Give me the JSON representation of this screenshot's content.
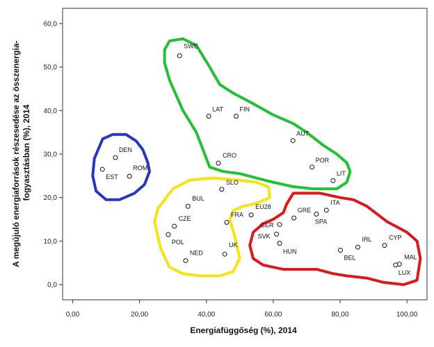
{
  "chart_data": {
    "type": "scatter",
    "xlabel": "Energiafüggőség (%), 2014",
    "ylabel": "A megújuló energiaforrások részesedése az összenergia-fogyasztásban (%), 2014",
    "xlim": [
      -3,
      106
    ],
    "ylim": [
      -3.5,
      63.5
    ],
    "x_ticks": [
      "0,00",
      "20,00",
      "40,00",
      "60,00",
      "80,00",
      "100,00"
    ],
    "y_ticks": [
      "0,0",
      "10,0",
      "20,0",
      "30,0",
      "40,0",
      "50,0",
      "60,0"
    ],
    "grid": false,
    "points": [
      {
        "label": "SWE",
        "x": 32.0,
        "y": 52.6
      },
      {
        "label": "LAT",
        "x": 40.7,
        "y": 38.7
      },
      {
        "label": "FIN",
        "x": 48.9,
        "y": 38.7
      },
      {
        "label": "AUT",
        "x": 65.9,
        "y": 33.1
      },
      {
        "label": "POR",
        "x": 71.6,
        "y": 27.0
      },
      {
        "label": "LIT",
        "x": 77.9,
        "y": 23.9
      },
      {
        "label": "CRO",
        "x": 43.6,
        "y": 27.9
      },
      {
        "label": "DEN",
        "x": 12.8,
        "y": 29.2
      },
      {
        "label": "EST",
        "x": 8.9,
        "y": 26.5
      },
      {
        "label": "ROM",
        "x": 17.0,
        "y": 24.9
      },
      {
        "label": "SLO",
        "x": 44.6,
        "y": 21.9
      },
      {
        "label": "BUL",
        "x": 34.5,
        "y": 18.0
      },
      {
        "label": "CZE",
        "x": 30.4,
        "y": 13.4
      },
      {
        "label": "POL",
        "x": 28.6,
        "y": 11.5
      },
      {
        "label": "NED",
        "x": 33.8,
        "y": 5.5
      },
      {
        "label": "FRA",
        "x": 46.1,
        "y": 14.3
      },
      {
        "label": "EU28",
        "x": 53.4,
        "y": 16.0
      },
      {
        "label": "UK",
        "x": 45.5,
        "y": 7.0
      },
      {
        "label": "GER",
        "x": 61.9,
        "y": 13.8
      },
      {
        "label": "SVK",
        "x": 61.0,
        "y": 11.6
      },
      {
        "label": "HUN",
        "x": 61.9,
        "y": 9.5
      },
      {
        "label": "GRE",
        "x": 66.2,
        "y": 15.3
      },
      {
        "label": "ITA",
        "x": 75.9,
        "y": 17.1
      },
      {
        "label": "SPA",
        "x": 72.9,
        "y": 16.2
      },
      {
        "label": "IRL",
        "x": 85.3,
        "y": 8.6
      },
      {
        "label": "BEL",
        "x": 80.1,
        "y": 7.9
      },
      {
        "label": "CYP",
        "x": 93.3,
        "y": 9.0
      },
      {
        "label": "MAL",
        "x": 97.7,
        "y": 4.7
      },
      {
        "label": "LUX",
        "x": 96.6,
        "y": 4.5
      }
    ],
    "clusters": [
      {
        "name": "green",
        "color": "#22c032"
      },
      {
        "name": "blue",
        "color": "#2a36c2"
      },
      {
        "name": "yellow",
        "color": "#f4e414"
      },
      {
        "name": "red",
        "color": "#dc1818"
      }
    ]
  },
  "colors": {
    "frame": "#333333",
    "point_stroke": "#111111"
  }
}
